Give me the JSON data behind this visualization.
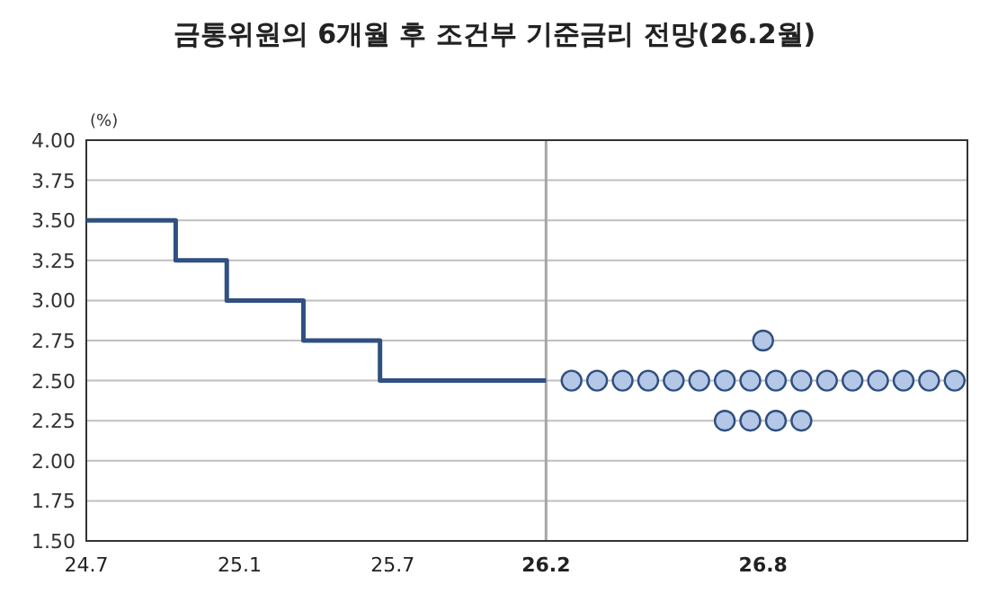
{
  "chart_data": {
    "type": "line",
    "title": "금통위원의 6개월 후 조건부 기준금리 전망(26.2월)",
    "ylabel": "(%)",
    "categories": [
      "24.7",
      null,
      null,
      null,
      null,
      null,
      null,
      null,
      null,
      null,
      null,
      null,
      "25.1",
      null,
      null,
      null,
      null,
      null,
      null,
      null,
      null,
      null,
      null,
      null,
      "25.7",
      null,
      null,
      null,
      null,
      null,
      null,
      null,
      null,
      null,
      null,
      null,
      "**26.2**",
      null,
      null,
      null,
      null,
      null,
      null,
      null,
      null,
      null,
      null,
      null,
      null,
      null,
      null,
      null,
      null,
      "**26.8**",
      null,
      null,
      null,
      null,
      null,
      null,
      null,
      null,
      null,
      null,
      null,
      null,
      null,
      null,
      null
    ],
    "ylim": [
      1.5,
      4.0
    ],
    "yticks": [
      {
        "value": 1.5,
        "label": "1.50"
      },
      {
        "value": 1.75,
        "label": "1.75"
      },
      {
        "value": 2.0,
        "label": "2.00"
      },
      {
        "value": 2.25,
        "label": "2.25"
      },
      {
        "value": 2.5,
        "label": "2.50"
      },
      {
        "value": 2.75,
        "label": "2.75"
      },
      {
        "value": 3.0,
        "label": "3.00"
      },
      {
        "value": 3.25,
        "label": "3.25"
      },
      {
        "value": 3.5,
        "label": "3.50"
      },
      {
        "value": 3.75,
        "label": "3.75"
      },
      {
        "value": 4.0,
        "label": "4.00"
      }
    ],
    "grid": "y",
    "ref_lines": [
      {
        "axis": "x",
        "value": "**26.2**",
        "color": "#a6a6a6"
      }
    ],
    "series": [
      {
        "type": "step",
        "color": "#2f5080",
        "marker": "none",
        "values": [
          3.5,
          3.5,
          3.5,
          3.5,
          3.5,
          3.5,
          3.5,
          3.25,
          3.25,
          3.25,
          3.25,
          3.0,
          3.0,
          3.0,
          3.0,
          3.0,
          3.0,
          2.75,
          2.75,
          2.75,
          2.75,
          2.75,
          2.75,
          2.5,
          2.5,
          2.5,
          2.5,
          2.5,
          2.5,
          2.5,
          2.5,
          2.5,
          2.5,
          2.5,
          2.5,
          2.5,
          2.5,
          null,
          null,
          null,
          null,
          null,
          null,
          null,
          null,
          null,
          null,
          null,
          null,
          null,
          null,
          null,
          null,
          null,
          null,
          null,
          null,
          null,
          null,
          null,
          null,
          null,
          null,
          null,
          null,
          null,
          null,
          null,
          null
        ]
      },
      {
        "type": "scatter",
        "color": "#b4c7e7",
        "marker": "circle",
        "values": [
          null,
          null,
          null,
          null,
          null,
          null,
          null,
          null,
          null,
          null,
          null,
          null,
          null,
          null,
          null,
          null,
          null,
          null,
          null,
          null,
          null,
          null,
          null,
          null,
          null,
          null,
          null,
          null,
          null,
          null,
          null,
          null,
          null,
          null,
          null,
          null,
          null,
          null,
          2.5,
          null,
          2.5,
          null,
          2.5,
          null,
          2.5,
          null,
          2.5,
          null,
          2.5,
          null,
          2.5,
          null,
          2.5,
          null,
          2.5,
          null,
          2.5,
          null,
          2.5,
          null,
          2.5,
          null,
          2.5,
          null,
          2.5,
          null,
          2.5,
          null,
          2.5
        ]
      },
      {
        "type": "scatter",
        "color": "#b4c7e7",
        "marker": "circle",
        "values": [
          null,
          null,
          null,
          null,
          null,
          null,
          null,
          null,
          null,
          null,
          null,
          null,
          null,
          null,
          null,
          null,
          null,
          null,
          null,
          null,
          null,
          null,
          null,
          null,
          null,
          null,
          null,
          null,
          null,
          null,
          null,
          null,
          null,
          null,
          null,
          null,
          null,
          null,
          null,
          null,
          null,
          null,
          null,
          null,
          null,
          null,
          null,
          null,
          null,
          null,
          null,
          null,
          null,
          2.75,
          null,
          null,
          null,
          null,
          null,
          null,
          null,
          null,
          null,
          null,
          null,
          null,
          null,
          null,
          null
        ]
      },
      {
        "type": "scatter",
        "color": "#b4c7e7",
        "marker": "circle",
        "values": [
          null,
          null,
          null,
          null,
          null,
          null,
          null,
          null,
          null,
          null,
          null,
          null,
          null,
          null,
          null,
          null,
          null,
          null,
          null,
          null,
          null,
          null,
          null,
          null,
          null,
          null,
          null,
          null,
          null,
          null,
          null,
          null,
          null,
          null,
          null,
          null,
          null,
          null,
          null,
          null,
          null,
          null,
          null,
          null,
          null,
          null,
          null,
          null,
          null,
          null,
          2.25,
          null,
          2.25,
          null,
          2.25,
          null,
          2.25,
          null,
          null,
          null,
          null,
          null,
          null,
          null,
          null,
          null,
          null,
          null,
          null
        ]
      }
    ]
  }
}
